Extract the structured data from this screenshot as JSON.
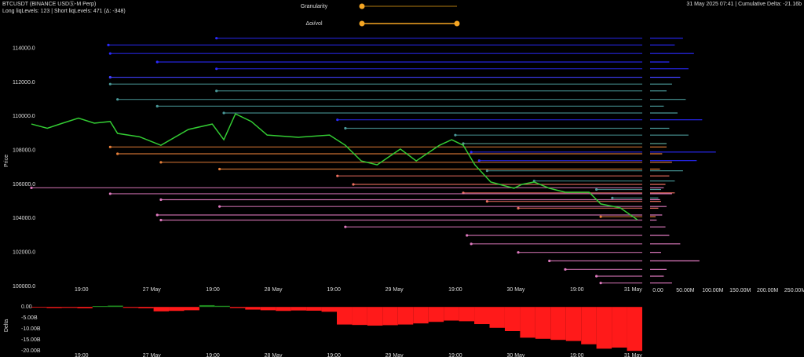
{
  "header": {
    "symbol": "BTCUSDT (BINANCE USDⓈ-M Perp)",
    "levels": "Long liqLevels: 123 | Short liqLevels: 471 (Δ: -348)",
    "status": "31 May 2025 07:41 | Cumulative Delta: -21.16b"
  },
  "controls": {
    "granularity": "Granularity",
    "oi_vol": "Δoi/vol"
  },
  "chart_data": [
    {
      "type": "line",
      "y_label": "Price",
      "color": "#33cc33",
      "x": [
        0,
        2.6,
        5.1,
        7.7,
        10.3,
        12.9,
        14.1,
        17.7,
        21.2,
        25.7,
        29.6,
        31.5,
        33.4,
        36.0,
        38.6,
        43.7,
        48.8,
        51.4,
        54.0,
        56.6,
        60.4,
        63.0,
        66.8,
        68.8,
        70.7,
        72.6,
        75.2,
        79.0,
        80.3,
        82.3,
        84.8,
        87.4,
        91.3,
        93.2,
        96.4,
        99.2
      ],
      "values": [
        109550,
        109300,
        109600,
        109900,
        109600,
        109700,
        109000,
        108800,
        108300,
        109230,
        109550,
        108630,
        110150,
        109700,
        108900,
        108770,
        108900,
        108300,
        107380,
        107150,
        108080,
        107380,
        108300,
        108630,
        108300,
        107150,
        106140,
        105770,
        106000,
        106140,
        105770,
        105540,
        105540,
        104850,
        104620,
        103920
      ],
      "xlim": [
        0,
        100
      ],
      "ylim": [
        100000,
        115000
      ],
      "yticks": [
        {
          "value": 100000,
          "label": "100000.0"
        },
        {
          "value": 102000,
          "label": "102000.0"
        },
        {
          "value": 104000,
          "label": "104000.0"
        },
        {
          "value": 106000,
          "label": "106000.0"
        },
        {
          "value": 108000,
          "label": "108000.0"
        },
        {
          "value": 110000,
          "label": "110000.0"
        },
        {
          "value": 112000,
          "label": "112000.0"
        },
        {
          "value": 114000,
          "label": "114000.0"
        }
      ],
      "xticks": [
        {
          "value": 8.2,
          "label": "19:00"
        },
        {
          "value": 19.7,
          "label": "27 May"
        },
        {
          "value": 29.7,
          "label": "19:00"
        },
        {
          "value": 39.6,
          "label": "28 May"
        },
        {
          "value": 49.5,
          "label": "19:00"
        },
        {
          "value": 59.4,
          "label": "29 May"
        },
        {
          "value": 69.4,
          "label": "19:00"
        },
        {
          "value": 79.3,
          "label": "30 May"
        },
        {
          "value": 89.3,
          "label": "19:00"
        },
        {
          "value": 98.5,
          "label": "31 May"
        }
      ],
      "levels": [
        {
          "price": 114600,
          "x": 30.3,
          "color": "#2a2aff"
        },
        {
          "price": 114200,
          "x": 12.6,
          "color": "#2a2aff"
        },
        {
          "price": 113700,
          "x": 12.9,
          "color": "#2a2aff"
        },
        {
          "price": 113200,
          "x": 20.6,
          "color": "#2a2aff"
        },
        {
          "price": 112800,
          "x": 30.3,
          "color": "#2a2aff"
        },
        {
          "price": 112300,
          "x": 12.9,
          "color": "#4040ff"
        },
        {
          "price": 111900,
          "x": 12.9,
          "color": "#4a9a9a"
        },
        {
          "price": 111500,
          "x": 30.3,
          "color": "#4a9a9a"
        },
        {
          "price": 111000,
          "x": 14.1,
          "color": "#4a9a9a"
        },
        {
          "price": 110600,
          "x": 20.6,
          "color": "#4a9a9a"
        },
        {
          "price": 110200,
          "x": 31.5,
          "color": "#4a9a9a"
        },
        {
          "price": 109800,
          "x": 50.1,
          "color": "#2a2aff"
        },
        {
          "price": 109300,
          "x": 51.4,
          "color": "#4a9a9a"
        },
        {
          "price": 108900,
          "x": 69.4,
          "color": "#4a9a9a"
        },
        {
          "price": 108400,
          "x": 70.7,
          "color": "#5aa090"
        },
        {
          "price": 107900,
          "x": 72.0,
          "color": "#2a2aff"
        },
        {
          "price": 107400,
          "x": 73.3,
          "color": "#2a2aff"
        },
        {
          "price": 106800,
          "x": 74.6,
          "color": "#4a9a9a"
        },
        {
          "price": 106200,
          "x": 82.3,
          "color": "#4a9a9a"
        },
        {
          "price": 105700,
          "x": 92.5,
          "color": "#4a9a9a"
        },
        {
          "price": 105200,
          "x": 95.1,
          "color": "#4a9a9a"
        },
        {
          "price": 108200,
          "x": 12.9,
          "color": "#e8803a"
        },
        {
          "price": 107800,
          "x": 14.1,
          "color": "#e8803a"
        },
        {
          "price": 107300,
          "x": 21.2,
          "color": "#e8803a"
        },
        {
          "price": 106900,
          "x": 30.8,
          "color": "#e8803a"
        },
        {
          "price": 106500,
          "x": 50.1,
          "color": "#f07060"
        },
        {
          "price": 106000,
          "x": 52.7,
          "color": "#f07060"
        },
        {
          "price": 105500,
          "x": 70.7,
          "color": "#f07060"
        },
        {
          "price": 105000,
          "x": 74.6,
          "color": "#f07060"
        },
        {
          "price": 104600,
          "x": 79.7,
          "color": "#f07060"
        },
        {
          "price": 104100,
          "x": 93.2,
          "color": "#e8803a"
        },
        {
          "price": 105800,
          "x": 0,
          "color": "#e07ac0"
        },
        {
          "price": 105450,
          "x": 12.9,
          "color": "#e07ac0"
        },
        {
          "price": 105100,
          "x": 21.2,
          "color": "#e07ac0"
        },
        {
          "price": 104700,
          "x": 30.8,
          "color": "#e07ac0"
        },
        {
          "price": 104200,
          "x": 20.6,
          "color": "#e07ac0"
        },
        {
          "price": 103900,
          "x": 21.2,
          "color": "#e07ac0"
        },
        {
          "price": 103500,
          "x": 51.4,
          "color": "#e07ac0"
        },
        {
          "price": 103000,
          "x": 71.3,
          "color": "#e07ac0"
        },
        {
          "price": 102500,
          "x": 72.0,
          "color": "#e07ac0"
        },
        {
          "price": 102000,
          "x": 79.7,
          "color": "#e07ac0"
        },
        {
          "price": 101500,
          "x": 84.8,
          "color": "#e07ac0"
        },
        {
          "price": 101000,
          "x": 87.4,
          "color": "#e07ac0"
        },
        {
          "price": 100600,
          "x": 92.5,
          "color": "#e07ac0"
        },
        {
          "price": 100200,
          "x": 93.2,
          "color": "#e07ac0"
        }
      ]
    },
    {
      "type": "bar",
      "y_label": "Delta",
      "positive_color": "#1f8a1f",
      "negative_color": "#ff1a1a",
      "x": [
        0,
        2.5,
        5,
        7.5,
        10,
        12.5,
        15,
        17.5,
        20,
        22.5,
        25,
        27.5,
        30,
        32.5,
        35,
        37.5,
        40,
        42.5,
        45,
        47.5,
        50,
        52.5,
        55,
        57.5,
        60,
        62.5,
        65,
        67.5,
        70,
        72.5,
        75,
        77.5,
        80,
        82.5,
        85,
        87.5,
        90,
        92.5,
        95,
        97.5
      ],
      "values": [
        -0.3,
        -0.5,
        -0.4,
        -0.6,
        0.4,
        0.6,
        -0.4,
        -0.6,
        -2,
        -1.8,
        -1.5,
        0.8,
        0.5,
        -0.5,
        -1.2,
        -1.5,
        -1.8,
        -1.6,
        -1.7,
        -2.2,
        -8,
        -8.2,
        -8.5,
        -8.3,
        -8.0,
        -7.5,
        -6.8,
        -6.2,
        -6.5,
        -7.8,
        -9.5,
        -11,
        -14,
        -14.5,
        -15,
        -15.5,
        -17,
        -19,
        -18.5,
        -20
      ],
      "ylim": [
        -21,
        1.5
      ],
      "yticks": [
        {
          "value": 0,
          "label": "0.00"
        },
        {
          "value": -5,
          "label": "-5.00B"
        },
        {
          "value": -10,
          "label": "-10.00B"
        },
        {
          "value": -15,
          "label": "-15.00B"
        },
        {
          "value": -20,
          "label": "-20.00B"
        }
      ]
    },
    {
      "type": "barh",
      "values": [
        60,
        45,
        80,
        35,
        70,
        55,
        40,
        30,
        65,
        25,
        50,
        95,
        35,
        70,
        30,
        120,
        85,
        60,
        45,
        20,
        15,
        30,
        22,
        40,
        18,
        35,
        28,
        45,
        20,
        15,
        10,
        25,
        40,
        18,
        30,
        22,
        12,
        28,
        35,
        55,
        20,
        90,
        30,
        25,
        40
      ],
      "xlim": [
        0,
        275
      ],
      "xticks": [
        {
          "value": 0,
          "label": "0.00"
        },
        {
          "value": 50,
          "label": "50.00M"
        },
        {
          "value": 100,
          "label": "100.00M"
        },
        {
          "value": 150,
          "label": "150.00M"
        },
        {
          "value": 200,
          "label": "200.00M"
        },
        {
          "value": 250,
          "label": "250.00M"
        }
      ]
    }
  ]
}
